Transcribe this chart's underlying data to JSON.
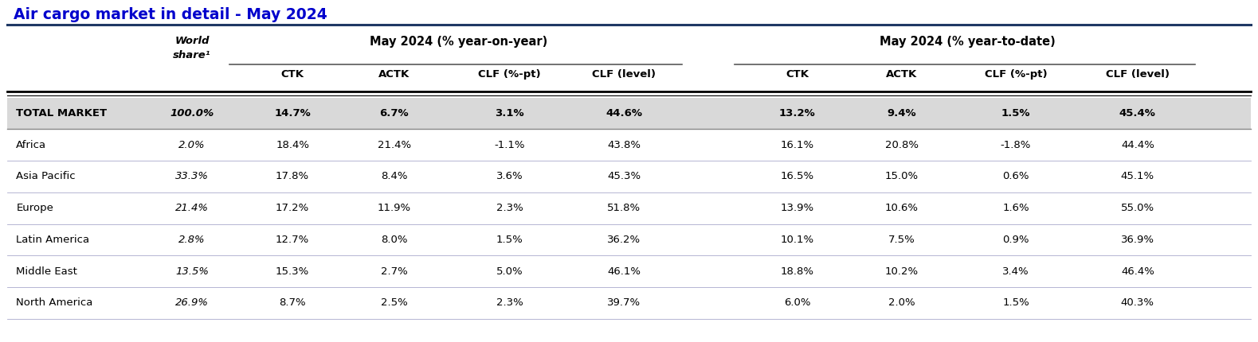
{
  "title": "Air cargo market in detail - May 2024",
  "title_color": "#0000CC",
  "title_fontsize": 13.5,
  "sub_headers": [
    "CTK",
    "ACTK",
    "CLF (%-pt)",
    "CLF (level)",
    "CTK",
    "ACTK",
    "CLF (%-pt)",
    "CLF (level)"
  ],
  "yoy_group_label": "May 2024 (% year-on-year)",
  "ytd_group_label": "May 2024 (% year-to-date)",
  "world_share_label": "World\nshare¹",
  "rows": [
    {
      "region": "TOTAL MARKET",
      "world_share": "100.0%",
      "yoy_ctk": "14.7%",
      "yoy_actk": "6.7%",
      "yoy_clf_pt": "3.1%",
      "yoy_clf_lvl": "44.6%",
      "ytd_ctk": "13.2%",
      "ytd_actk": "9.4%",
      "ytd_clf_pt": "1.5%",
      "ytd_clf_lvl": "45.4%",
      "bold": true,
      "bg": "#D9D9D9"
    },
    {
      "region": "Africa",
      "world_share": "2.0%",
      "yoy_ctk": "18.4%",
      "yoy_actk": "21.4%",
      "yoy_clf_pt": "-1.1%",
      "yoy_clf_lvl": "43.8%",
      "ytd_ctk": "16.1%",
      "ytd_actk": "20.8%",
      "ytd_clf_pt": "-1.8%",
      "ytd_clf_lvl": "44.4%",
      "bold": false,
      "bg": "#FFFFFF"
    },
    {
      "region": "Asia Pacific",
      "world_share": "33.3%",
      "yoy_ctk": "17.8%",
      "yoy_actk": "8.4%",
      "yoy_clf_pt": "3.6%",
      "yoy_clf_lvl": "45.3%",
      "ytd_ctk": "16.5%",
      "ytd_actk": "15.0%",
      "ytd_clf_pt": "0.6%",
      "ytd_clf_lvl": "45.1%",
      "bold": false,
      "bg": "#FFFFFF"
    },
    {
      "region": "Europe",
      "world_share": "21.4%",
      "yoy_ctk": "17.2%",
      "yoy_actk": "11.9%",
      "yoy_clf_pt": "2.3%",
      "yoy_clf_lvl": "51.8%",
      "ytd_ctk": "13.9%",
      "ytd_actk": "10.6%",
      "ytd_clf_pt": "1.6%",
      "ytd_clf_lvl": "55.0%",
      "bold": false,
      "bg": "#FFFFFF"
    },
    {
      "region": "Latin America",
      "world_share": "2.8%",
      "yoy_ctk": "12.7%",
      "yoy_actk": "8.0%",
      "yoy_clf_pt": "1.5%",
      "yoy_clf_lvl": "36.2%",
      "ytd_ctk": "10.1%",
      "ytd_actk": "7.5%",
      "ytd_clf_pt": "0.9%",
      "ytd_clf_lvl": "36.9%",
      "bold": false,
      "bg": "#FFFFFF"
    },
    {
      "region": "Middle East",
      "world_share": "13.5%",
      "yoy_ctk": "15.3%",
      "yoy_actk": "2.7%",
      "yoy_clf_pt": "5.0%",
      "yoy_clf_lvl": "46.1%",
      "ytd_ctk": "18.8%",
      "ytd_actk": "10.2%",
      "ytd_clf_pt": "3.4%",
      "ytd_clf_lvl": "46.4%",
      "bold": false,
      "bg": "#FFFFFF"
    },
    {
      "region": "North America",
      "world_share": "26.9%",
      "yoy_ctk": "8.7%",
      "yoy_actk": "2.5%",
      "yoy_clf_pt": "2.3%",
      "yoy_clf_lvl": "39.7%",
      "ytd_ctk": "6.0%",
      "ytd_actk": "2.0%",
      "ytd_clf_pt": "1.5%",
      "ytd_clf_lvl": "40.3%",
      "bold": false,
      "bg": "#FFFFFF"
    }
  ],
  "bg_color": "#FFFFFF",
  "text_color": "#000000",
  "title_line_color": "#1F3864",
  "header_underline_color": "#595959",
  "thick_line_color": "#000000",
  "row_sep_color": "#AAAACC",
  "total_bg": "#D9D9D9"
}
